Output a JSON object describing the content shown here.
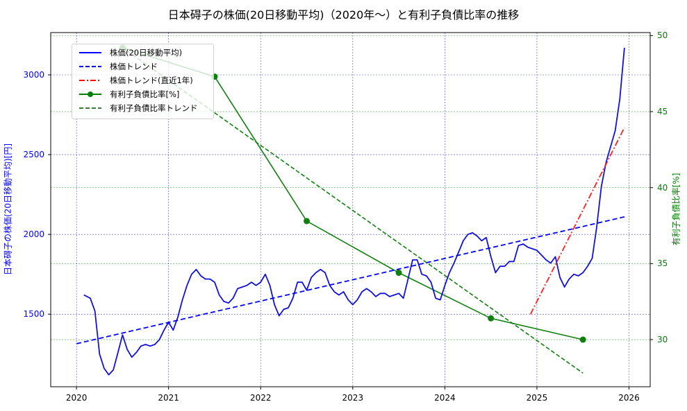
{
  "title": "日本碍子の株価(20日移動平均)（2020年〜）と有利子負債比率の推移",
  "axes": {
    "ylabel_left": "日本碍子の株価(20日移動平均)[円]",
    "ylabel_right": "有利子負債比率[%]",
    "xticks": [
      "2020",
      "2021",
      "2022",
      "2023",
      "2024",
      "2025",
      "2026"
    ],
    "yticks_left": [
      "1500",
      "2000",
      "2500",
      "3000"
    ],
    "yticks_right": [
      "30",
      "35",
      "40",
      "45",
      "50"
    ]
  },
  "legend": {
    "items": [
      {
        "label": "株価(20日移動平均)",
        "color": "#0000ff",
        "style": "solid"
      },
      {
        "label": "株価トレンド",
        "color": "#0000ff",
        "style": "dashed"
      },
      {
        "label": "株価トレンド(直近1年)",
        "color": "#ff0000",
        "style": "dashdot"
      },
      {
        "label": "有利子負債比率[%]",
        "color": "#008000",
        "style": "solid-marker"
      },
      {
        "label": "有利子負債比率トレンド",
        "color": "#008000",
        "style": "dashed"
      }
    ]
  },
  "colors": {
    "price": "#1010e0",
    "price_trend": "#0000ff",
    "recent_trend": "#ff2020",
    "debt": "#0f7f0f",
    "debt_trend": "#0f7f0f",
    "grid_left": "#4040d0",
    "grid_right": "#40a040"
  },
  "chart_data": {
    "type": "line",
    "title": "日本碍子の株価(20日移動平均)（2020年〜）と有利子負債比率の推移",
    "xlabel": "",
    "ylabel": "日本碍子の株価(20日移動平均)[円]",
    "ylabel_secondary": "有利子負債比率[%]",
    "xlim": [
      2019.72,
      2026.23
    ],
    "ylim": [
      1045,
      3265
    ],
    "ylim_secondary": [
      26.9,
      50.2
    ],
    "grid": true,
    "legend_position": "upper left",
    "series": [
      {
        "name": "株価(20日移動平均)",
        "axis": "left",
        "style": "solid",
        "x": [
          2020.08,
          2020.15,
          2020.2,
          2020.25,
          2020.3,
          2020.35,
          2020.4,
          2020.45,
          2020.5,
          2020.55,
          2020.6,
          2020.65,
          2020.7,
          2020.75,
          2020.8,
          2020.85,
          2020.9,
          2020.95,
          2021.0,
          2021.05,
          2021.1,
          2021.15,
          2021.2,
          2021.25,
          2021.3,
          2021.35,
          2021.4,
          2021.45,
          2021.5,
          2021.55,
          2021.6,
          2021.65,
          2021.7,
          2021.75,
          2021.8,
          2021.85,
          2021.9,
          2021.95,
          2022.0,
          2022.05,
          2022.1,
          2022.15,
          2022.2,
          2022.25,
          2022.3,
          2022.35,
          2022.4,
          2022.45,
          2022.5,
          2022.55,
          2022.6,
          2022.65,
          2022.7,
          2022.75,
          2022.8,
          2022.85,
          2022.9,
          2022.95,
          2023.0,
          2023.05,
          2023.1,
          2023.15,
          2023.2,
          2023.25,
          2023.3,
          2023.35,
          2023.4,
          2023.45,
          2023.5,
          2023.55,
          2023.6,
          2023.65,
          2023.7,
          2023.75,
          2023.8,
          2023.85,
          2023.9,
          2023.95,
          2024.0,
          2024.05,
          2024.1,
          2024.15,
          2024.2,
          2024.25,
          2024.3,
          2024.35,
          2024.4,
          2024.45,
          2024.5,
          2024.55,
          2024.6,
          2024.65,
          2024.7,
          2024.75,
          2024.8,
          2024.85,
          2024.9,
          2024.95,
          2025.0,
          2025.05,
          2025.1,
          2025.15,
          2025.2,
          2025.25,
          2025.3,
          2025.35,
          2025.4,
          2025.45,
          2025.5,
          2025.55,
          2025.6,
          2025.65,
          2025.7,
          2025.75,
          2025.8,
          2025.85,
          2025.9,
          2025.95
        ],
        "values": [
          1620,
          1600,
          1520,
          1250,
          1160,
          1120,
          1150,
          1260,
          1370,
          1280,
          1230,
          1260,
          1300,
          1310,
          1300,
          1310,
          1340,
          1400,
          1450,
          1400,
          1480,
          1590,
          1680,
          1750,
          1780,
          1740,
          1720,
          1720,
          1700,
          1620,
          1580,
          1570,
          1600,
          1660,
          1670,
          1680,
          1700,
          1680,
          1700,
          1750,
          1680,
          1560,
          1490,
          1530,
          1540,
          1600,
          1700,
          1700,
          1650,
          1730,
          1760,
          1780,
          1760,
          1680,
          1640,
          1620,
          1640,
          1590,
          1560,
          1590,
          1640,
          1660,
          1640,
          1610,
          1630,
          1630,
          1610,
          1620,
          1630,
          1600,
          1720,
          1840,
          1840,
          1750,
          1740,
          1700,
          1600,
          1590,
          1680,
          1760,
          1820,
          1890,
          1960,
          2000,
          2010,
          1990,
          1960,
          1980,
          1860,
          1760,
          1800,
          1800,
          1830,
          1830,
          1930,
          1940,
          1920,
          1910,
          1900,
          1870,
          1840,
          1820,
          1860,
          1730,
          1670,
          1720,
          1750,
          1740,
          1760,
          1800,
          1850,
          2050,
          2300,
          2450,
          2550,
          2650,
          2850,
          3170
        ]
      },
      {
        "name": "株価トレンド",
        "axis": "left",
        "style": "dashed",
        "x": [
          2020.0,
          2025.95
        ],
        "values": [
          1315,
          2110
        ]
      },
      {
        "name": "株価トレンド(直近1年)",
        "axis": "left",
        "style": "dashdot",
        "x": [
          2024.93,
          2025.95
        ],
        "values": [
          1500,
          2670
        ]
      },
      {
        "name": "有利子負債比率[%]",
        "axis": "right",
        "style": "solid-marker",
        "x": [
          2020.5,
          2021.5,
          2022.5,
          2023.5,
          2024.5,
          2025.5
        ],
        "values": [
          49.2,
          47.3,
          37.8,
          34.4,
          31.4,
          30.0
        ]
      },
      {
        "name": "有利子負債比率トレンド",
        "axis": "right",
        "style": "dashed",
        "x": [
          2020.5,
          2025.5
        ],
        "values": [
          49.2,
          27.8
        ]
      }
    ]
  }
}
